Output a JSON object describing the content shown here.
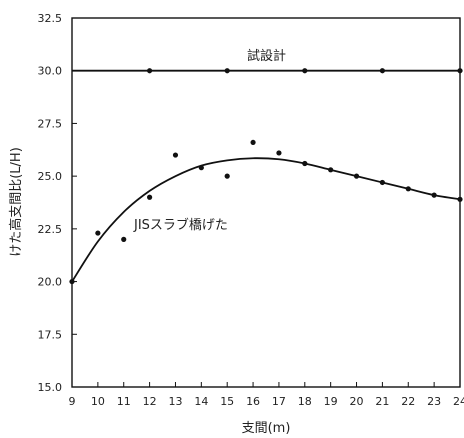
{
  "chart_data": {
    "type": "scatter",
    "xlabel": "支間(m)",
    "ylabel": "けた高支間比(L/H)",
    "xlim": [
      9,
      24
    ],
    "ylim": [
      15.0,
      32.5
    ],
    "x_ticks": [
      9,
      10,
      11,
      12,
      13,
      14,
      15,
      16,
      17,
      18,
      19,
      20,
      21,
      22,
      23,
      24
    ],
    "y_ticks": [
      "15.0",
      "17.5",
      "20.0",
      "22.5",
      "25.0",
      "27.5",
      "30.0",
      "32.5"
    ],
    "grid": false,
    "series": [
      {
        "name": "試設計",
        "points": [
          {
            "x": 12,
            "y": 30.0
          },
          {
            "x": 15,
            "y": 30.0
          },
          {
            "x": 18,
            "y": 30.0
          },
          {
            "x": 21,
            "y": 30.0
          },
          {
            "x": 24,
            "y": 30.0
          }
        ],
        "fit": [
          {
            "x": 9,
            "y": 30.0
          },
          {
            "x": 24,
            "y": 30.0
          }
        ]
      },
      {
        "name": "JISスラブ橋げた",
        "points": [
          {
            "x": 9,
            "y": 20.0
          },
          {
            "x": 10,
            "y": 22.3
          },
          {
            "x": 11,
            "y": 22.0
          },
          {
            "x": 12,
            "y": 24.0
          },
          {
            "x": 13,
            "y": 26.0
          },
          {
            "x": 14,
            "y": 25.4
          },
          {
            "x": 15,
            "y": 25.0
          },
          {
            "x": 16,
            "y": 26.6
          },
          {
            "x": 17,
            "y": 26.1
          },
          {
            "x": 18,
            "y": 25.6
          },
          {
            "x": 19,
            "y": 25.3
          },
          {
            "x": 20,
            "y": 25.0
          },
          {
            "x": 21,
            "y": 24.7
          },
          {
            "x": 22,
            "y": 24.4
          },
          {
            "x": 23,
            "y": 24.1
          },
          {
            "x": 24,
            "y": 23.9
          }
        ],
        "fit": [
          {
            "x": 9,
            "y": 20.0
          },
          {
            "x": 10,
            "y": 21.9
          },
          {
            "x": 11,
            "y": 23.3
          },
          {
            "x": 12,
            "y": 24.3
          },
          {
            "x": 13,
            "y": 25.0
          },
          {
            "x": 14,
            "y": 25.5
          },
          {
            "x": 15,
            "y": 25.75
          },
          {
            "x": 16,
            "y": 25.85
          },
          {
            "x": 17,
            "y": 25.8
          },
          {
            "x": 18,
            "y": 25.6
          },
          {
            "x": 19,
            "y": 25.3
          },
          {
            "x": 20,
            "y": 25.0
          },
          {
            "x": 21,
            "y": 24.7
          },
          {
            "x": 22,
            "y": 24.4
          },
          {
            "x": 23,
            "y": 24.1
          },
          {
            "x": 24,
            "y": 23.9
          }
        ]
      }
    ]
  }
}
